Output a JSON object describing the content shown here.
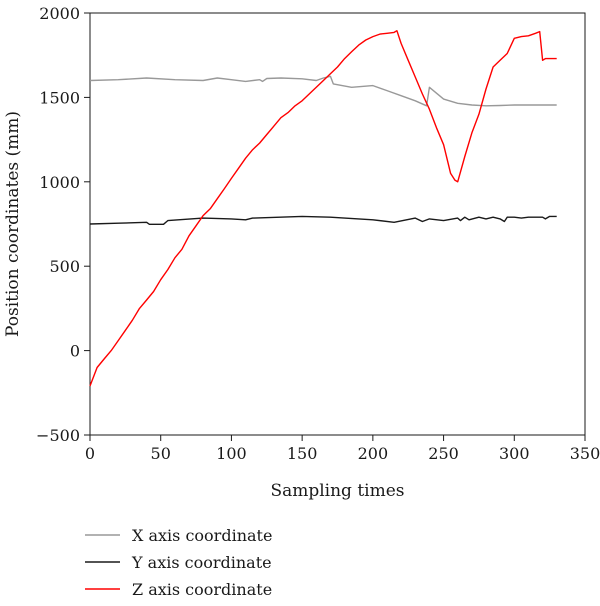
{
  "chart_data": {
    "type": "line",
    "xlabel": "Sampling times",
    "ylabel": "Position coordinates (mm)",
    "xlim": [
      0,
      350
    ],
    "ylim": [
      -500,
      2000
    ],
    "xticks": [
      0,
      50,
      100,
      150,
      200,
      250,
      300,
      350
    ],
    "yticks": [
      -500,
      0,
      500,
      1000,
      1500,
      2000
    ],
    "xtick_labels": [
      "0",
      "50",
      "100",
      "150",
      "200",
      "250",
      "300",
      "350"
    ],
    "ytick_labels": [
      "−500",
      "0",
      "500",
      "1000",
      "1500",
      "2000"
    ],
    "grid": false,
    "legend_position": "bottom-left, below plot",
    "series": [
      {
        "name": "X axis coordinate",
        "color": "#999999",
        "points": [
          [
            0,
            1600
          ],
          [
            20,
            1605
          ],
          [
            40,
            1615
          ],
          [
            60,
            1605
          ],
          [
            80,
            1600
          ],
          [
            90,
            1615
          ],
          [
            100,
            1605
          ],
          [
            110,
            1595
          ],
          [
            120,
            1605
          ],
          [
            122,
            1595
          ],
          [
            125,
            1612
          ],
          [
            135,
            1615
          ],
          [
            150,
            1610
          ],
          [
            160,
            1600
          ],
          [
            165,
            1615
          ],
          [
            170,
            1625
          ],
          [
            172,
            1580
          ],
          [
            185,
            1560
          ],
          [
            200,
            1570
          ],
          [
            210,
            1540
          ],
          [
            220,
            1510
          ],
          [
            230,
            1480
          ],
          [
            238,
            1450
          ],
          [
            240,
            1560
          ],
          [
            250,
            1490
          ],
          [
            260,
            1465
          ],
          [
            270,
            1455
          ],
          [
            280,
            1450
          ],
          [
            290,
            1452
          ],
          [
            300,
            1455
          ],
          [
            330,
            1455
          ]
        ]
      },
      {
        "name": "Y axis coordinate",
        "color": "#1a1a1a",
        "points": [
          [
            0,
            750
          ],
          [
            20,
            755
          ],
          [
            40,
            760
          ],
          [
            42,
            748
          ],
          [
            52,
            748
          ],
          [
            55,
            770
          ],
          [
            80,
            785
          ],
          [
            100,
            780
          ],
          [
            110,
            775
          ],
          [
            115,
            785
          ],
          [
            150,
            795
          ],
          [
            170,
            790
          ],
          [
            190,
            780
          ],
          [
            200,
            775
          ],
          [
            215,
            760
          ],
          [
            230,
            785
          ],
          [
            235,
            765
          ],
          [
            240,
            780
          ],
          [
            250,
            770
          ],
          [
            260,
            785
          ],
          [
            262,
            770
          ],
          [
            265,
            790
          ],
          [
            268,
            775
          ],
          [
            275,
            790
          ],
          [
            280,
            780
          ],
          [
            285,
            790
          ],
          [
            290,
            780
          ],
          [
            293,
            765
          ],
          [
            295,
            790
          ],
          [
            300,
            790
          ],
          [
            305,
            785
          ],
          [
            310,
            790
          ],
          [
            320,
            790
          ],
          [
            322,
            780
          ],
          [
            325,
            795
          ],
          [
            330,
            795
          ]
        ]
      },
      {
        "name": "Z axis coordinate",
        "color": "#ff0000",
        "points": [
          [
            0,
            -210
          ],
          [
            5,
            -100
          ],
          [
            10,
            -50
          ],
          [
            15,
            0
          ],
          [
            20,
            60
          ],
          [
            25,
            120
          ],
          [
            30,
            180
          ],
          [
            35,
            250
          ],
          [
            40,
            300
          ],
          [
            45,
            350
          ],
          [
            50,
            420
          ],
          [
            55,
            480
          ],
          [
            60,
            550
          ],
          [
            65,
            600
          ],
          [
            70,
            680
          ],
          [
            75,
            740
          ],
          [
            80,
            800
          ],
          [
            85,
            840
          ],
          [
            90,
            900
          ],
          [
            95,
            960
          ],
          [
            100,
            1020
          ],
          [
            105,
            1080
          ],
          [
            110,
            1140
          ],
          [
            115,
            1190
          ],
          [
            120,
            1230
          ],
          [
            125,
            1280
          ],
          [
            130,
            1330
          ],
          [
            135,
            1380
          ],
          [
            140,
            1410
          ],
          [
            145,
            1450
          ],
          [
            150,
            1480
          ],
          [
            155,
            1520
          ],
          [
            160,
            1560
          ],
          [
            165,
            1600
          ],
          [
            170,
            1640
          ],
          [
            175,
            1680
          ],
          [
            180,
            1730
          ],
          [
            185,
            1770
          ],
          [
            190,
            1810
          ],
          [
            195,
            1840
          ],
          [
            200,
            1860
          ],
          [
            205,
            1875
          ],
          [
            210,
            1880
          ],
          [
            215,
            1885
          ],
          [
            217,
            1895
          ],
          [
            220,
            1820
          ],
          [
            225,
            1720
          ],
          [
            230,
            1620
          ],
          [
            235,
            1520
          ],
          [
            240,
            1430
          ],
          [
            245,
            1320
          ],
          [
            250,
            1220
          ],
          [
            255,
            1050
          ],
          [
            258,
            1010
          ],
          [
            260,
            1000
          ],
          [
            265,
            1150
          ],
          [
            270,
            1290
          ],
          [
            275,
            1400
          ],
          [
            280,
            1550
          ],
          [
            285,
            1680
          ],
          [
            290,
            1720
          ],
          [
            295,
            1760
          ],
          [
            300,
            1850
          ],
          [
            305,
            1860
          ],
          [
            310,
            1865
          ],
          [
            315,
            1880
          ],
          [
            318,
            1890
          ],
          [
            320,
            1720
          ],
          [
            322,
            1730
          ],
          [
            330,
            1730
          ]
        ]
      }
    ]
  }
}
